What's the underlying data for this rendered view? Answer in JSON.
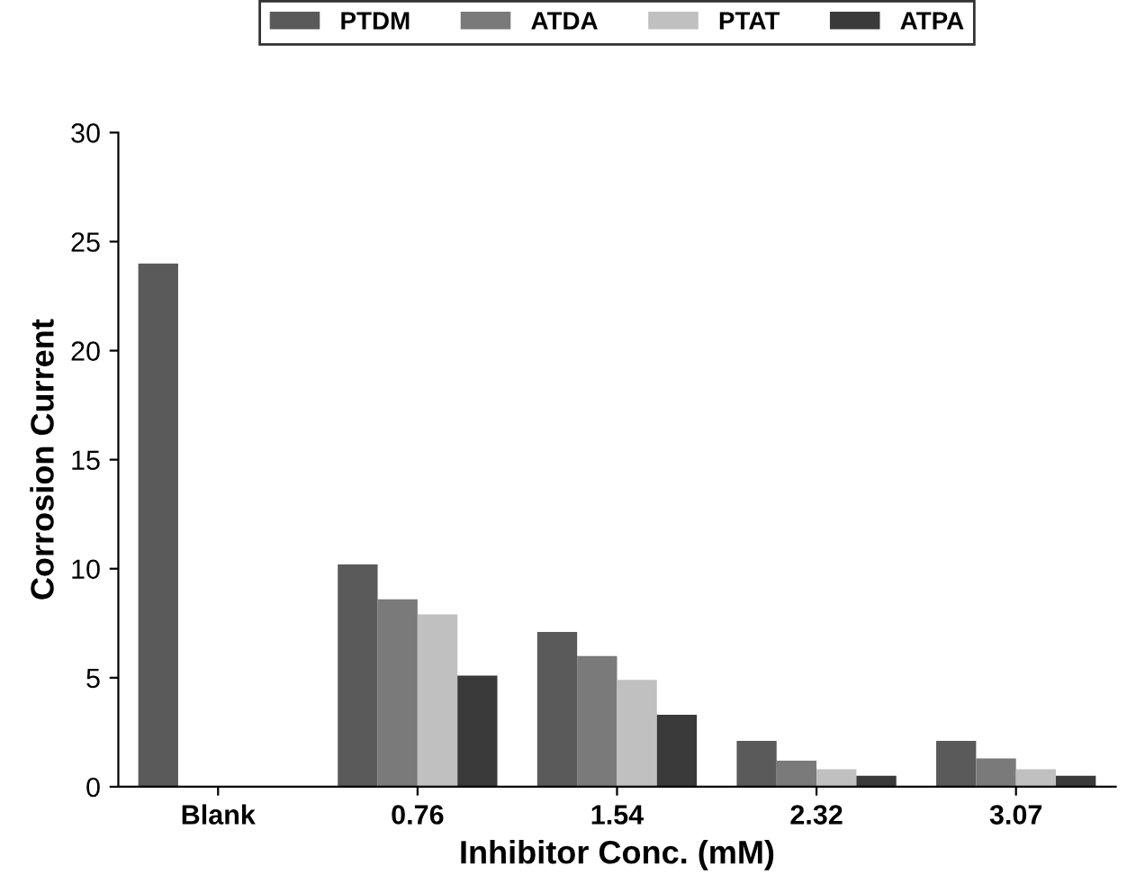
{
  "chart_data": {
    "type": "bar",
    "xlabel": "Inhibitor Conc. (mM)",
    "ylabel": "Corrosion Current",
    "categories": [
      "Blank",
      "0.76",
      "1.54",
      "2.32",
      "3.07"
    ],
    "series": [
      {
        "name": "PTDM",
        "color": "#5a5a5a",
        "values": [
          24.0,
          10.2,
          7.1,
          2.1,
          2.1
        ]
      },
      {
        "name": "ATDA",
        "color": "#7a7a7a",
        "values": [
          0,
          8.6,
          6.0,
          1.2,
          1.3
        ]
      },
      {
        "name": "PTAT",
        "color": "#c0c0c0",
        "values": [
          0,
          7.9,
          4.9,
          0.8,
          0.8
        ]
      },
      {
        "name": "ATPA",
        "color": "#3a3a3a",
        "values": [
          0,
          5.1,
          3.3,
          0.5,
          0.5
        ]
      }
    ],
    "ylim": [
      0,
      30
    ],
    "yticks": [
      0,
      5,
      10,
      15,
      20,
      25,
      30
    ],
    "grid": false,
    "legend": "top"
  }
}
